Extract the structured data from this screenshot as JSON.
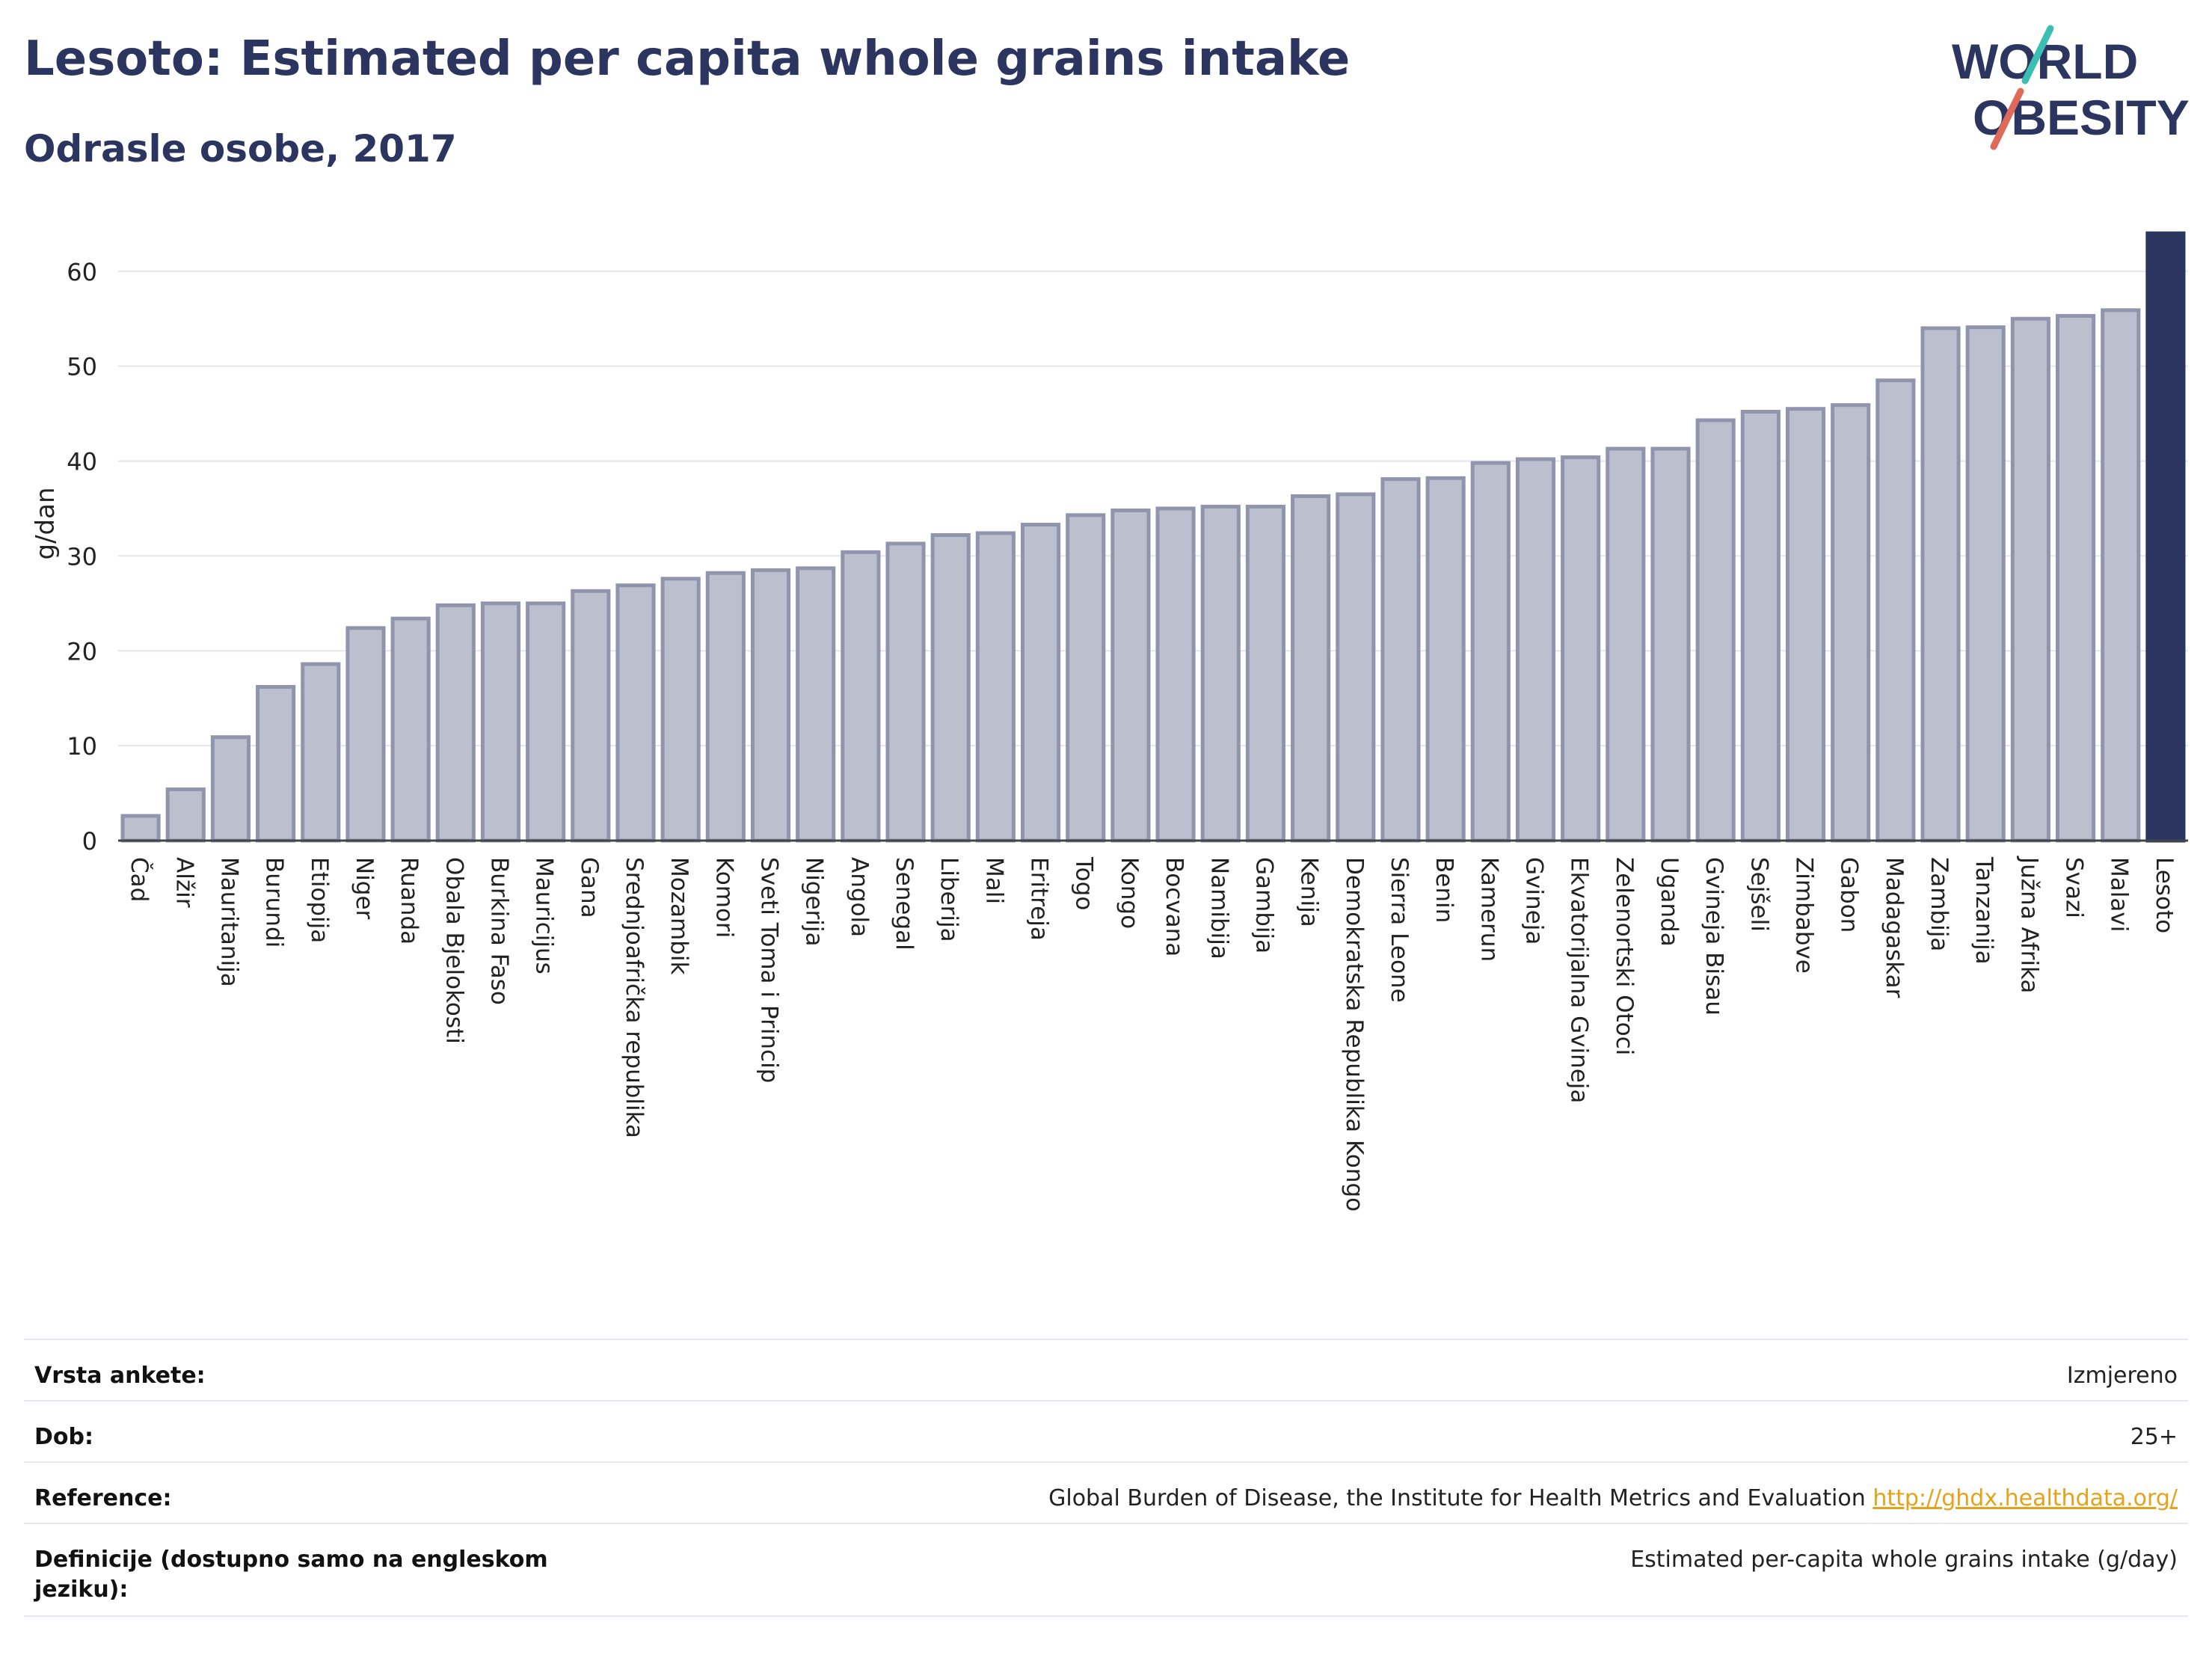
{
  "title": "Lesoto: Estimated per capita whole grains intake",
  "subtitle": "Odrasle osobe, 2017",
  "logo": {
    "line1": "WORLD",
    "line2": "OBESITY"
  },
  "colors": {
    "bar": "#bcc0ce",
    "bar_stroke": "#9095ad",
    "highlight": "#2b3560",
    "title": "#2b3560",
    "link": "#e5a21a"
  },
  "chart_data": {
    "type": "bar",
    "title": "Lesoto: Estimated per capita whole grains intake",
    "subtitle": "Odrasle osobe, 2017",
    "xlabel": "",
    "ylabel": "g/dan",
    "ylim": [
      0,
      64
    ],
    "yticks": [
      0,
      10,
      20,
      30,
      40,
      50,
      60
    ],
    "grid": true,
    "highlight": "Lesoto",
    "categories": [
      "Čad",
      "Alžir",
      "Mauritanija",
      "Burundi",
      "Etiopija",
      "Niger",
      "Ruanda",
      "Obala Bjelokosti",
      "Burkina Faso",
      "Mauricijus",
      "Gana",
      "Srednjoafrička republika",
      "Mozambik",
      "Komori",
      "Sveti Toma i Princip",
      "Nigerija",
      "Angola",
      "Senegal",
      "Liberija",
      "Mali",
      "Eritreja",
      "Togo",
      "Kongo",
      "Bocvana",
      "Namibija",
      "Gambija",
      "Kenija",
      "Demokratska Republika Kongo",
      "Sierra Leone",
      "Benin",
      "Kamerun",
      "Gvineja",
      "Ekvatorijalna Gvineja",
      "Zelenortski Otoci",
      "Uganda",
      "Gvineja Bisau",
      "Sejšeli",
      "Zimbabve",
      "Gabon",
      "Madagaskar",
      "Zambija",
      "Tanzanija",
      "Južna Afrika",
      "Svazi",
      "Malavi",
      "Lesoto"
    ],
    "values": [
      2.6,
      5.4,
      10.9,
      16.2,
      18.6,
      22.4,
      23.4,
      24.8,
      25.0,
      25.0,
      26.3,
      26.9,
      27.6,
      28.2,
      28.5,
      28.7,
      30.4,
      31.3,
      32.2,
      32.4,
      33.3,
      34.3,
      34.8,
      35.0,
      35.2,
      35.2,
      36.3,
      36.5,
      38.1,
      38.2,
      39.8,
      40.2,
      40.4,
      41.3,
      41.3,
      44.3,
      45.2,
      45.5,
      45.9,
      48.5,
      54.0,
      54.1,
      55.0,
      55.3,
      55.9,
      64.0
    ]
  },
  "meta": {
    "rows": [
      {
        "label": "Vrsta ankete:",
        "value": "Izmjereno"
      },
      {
        "label": "Dob:",
        "value": "25+"
      },
      {
        "label": "Reference:",
        "value": "Global Burden of Disease, the Institute for Health Metrics and Evaluation",
        "link": "http://ghdx.healthdata.org/"
      },
      {
        "label": "Definicije (dostupno samo na engleskom jeziku):",
        "value": "Estimated per-capita whole grains intake (g/day)"
      }
    ]
  }
}
